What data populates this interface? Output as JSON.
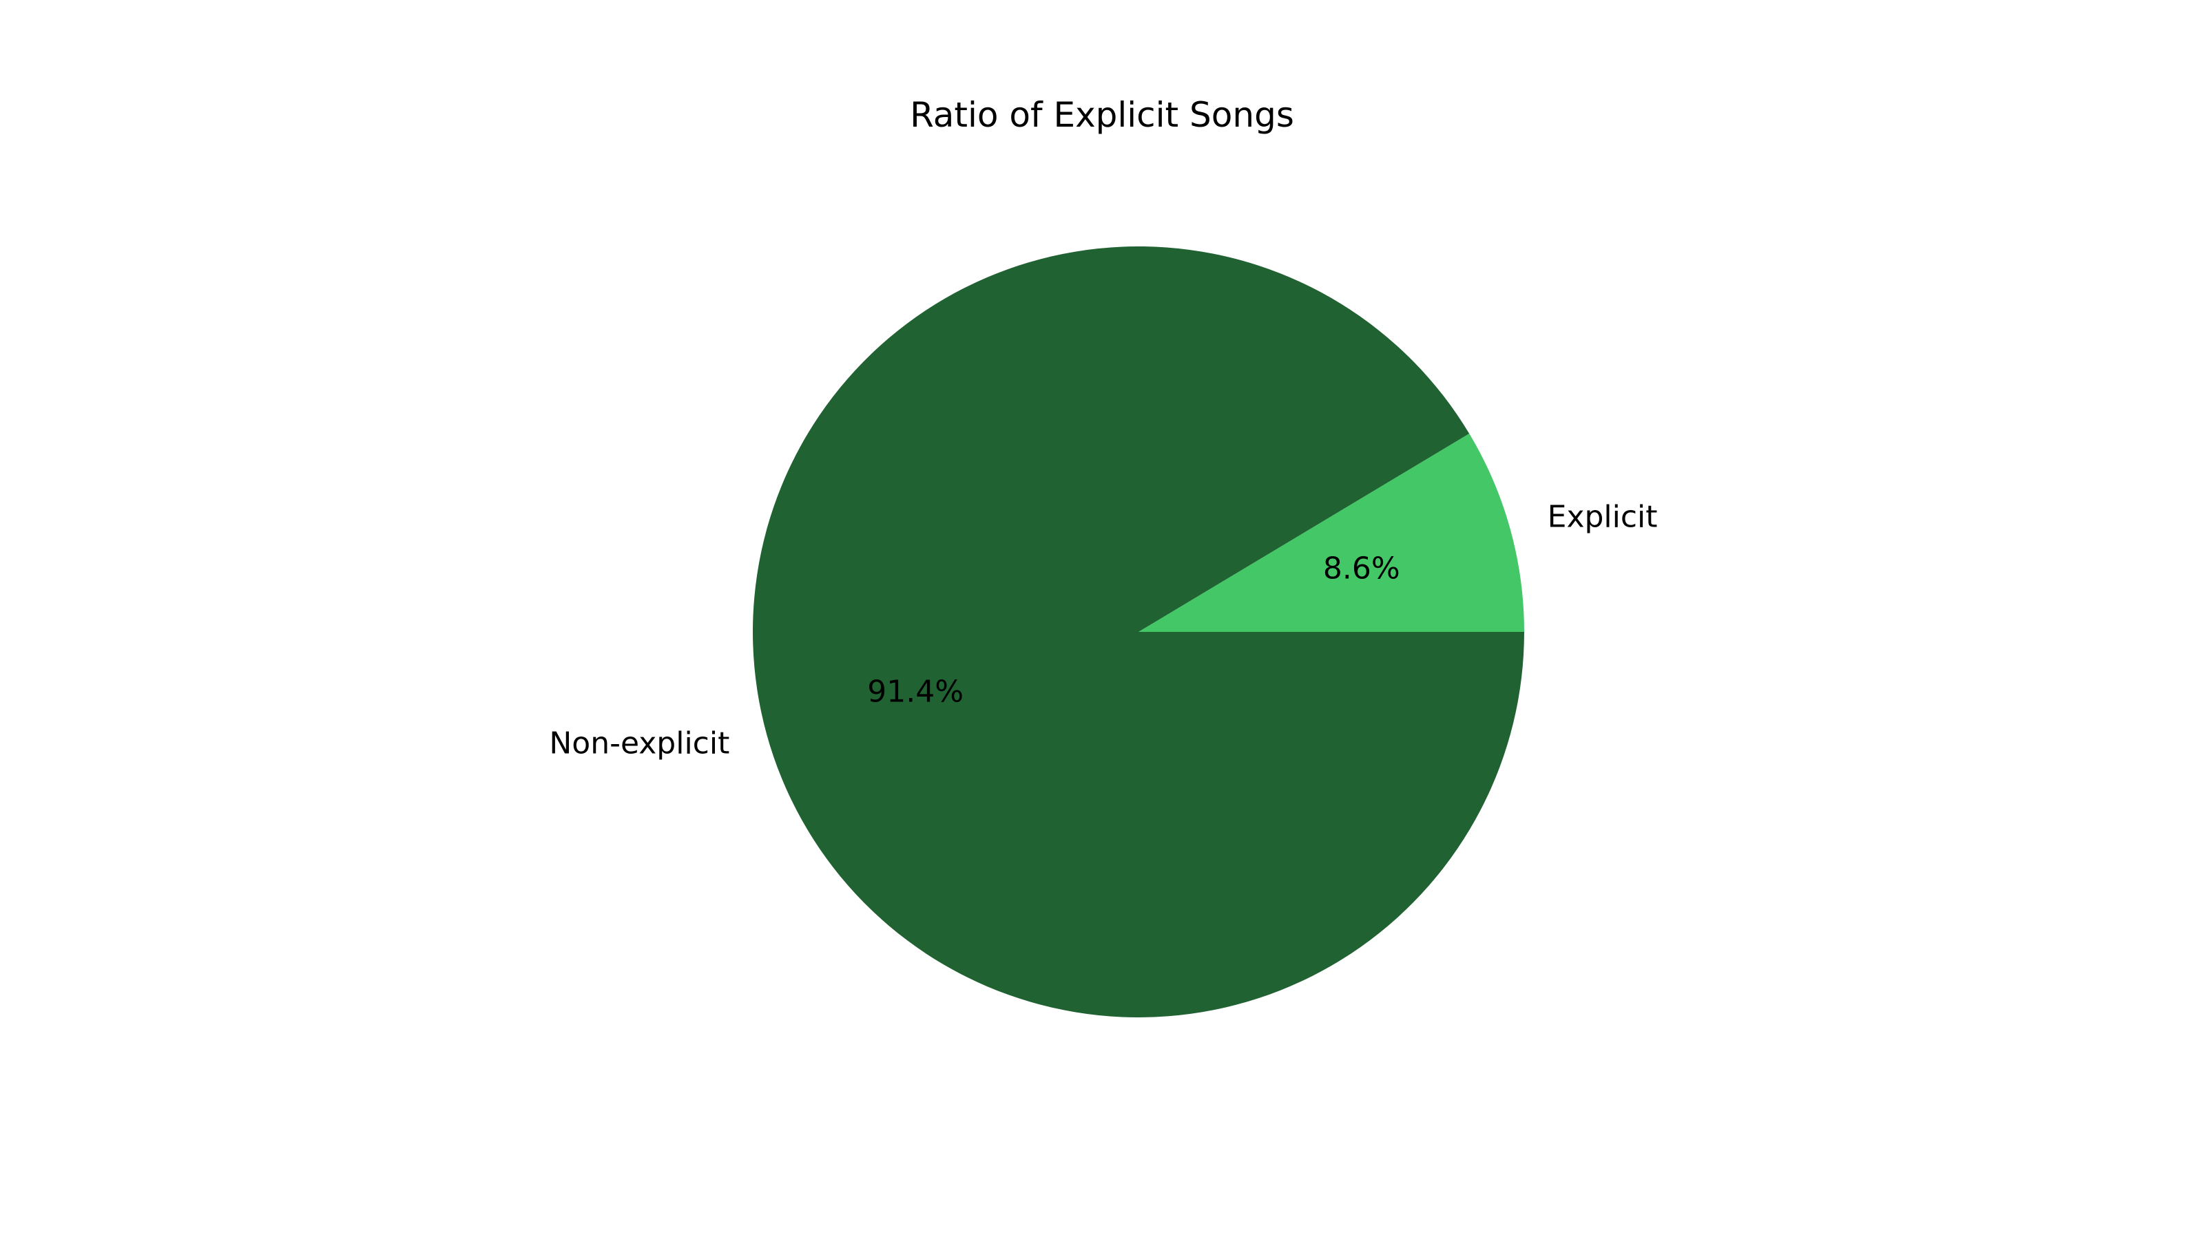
{
  "chart_data": {
    "type": "pie",
    "title": "Ratio of Explicit Songs",
    "categories": [
      "Explicit",
      "Non-explicit"
    ],
    "values": [
      8.6,
      91.4
    ],
    "percent_labels": [
      "8.6%",
      "91.4%"
    ],
    "colors": [
      "#44c767",
      "#206232"
    ],
    "start_angle_deg": 0,
    "direction": "counterclockwise",
    "legend": "none",
    "grid": false
  }
}
